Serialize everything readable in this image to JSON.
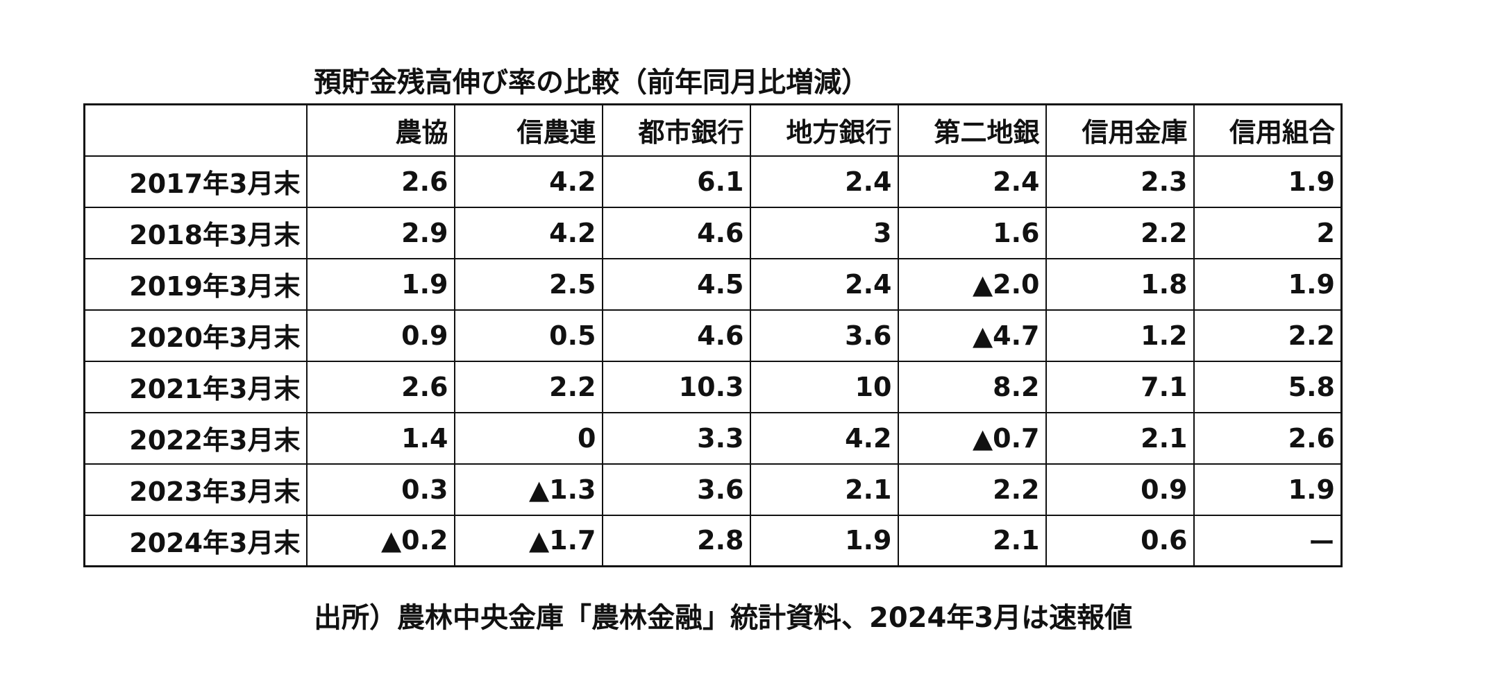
{
  "title": "預貯金残高伸び率の比較（前年同月比増減）",
  "table": {
    "columns": [
      "農協",
      "信農連",
      "都市銀行",
      "地方銀行",
      "第二地銀",
      "信用金庫",
      "信用組合"
    ],
    "rows": [
      [
        "2017年3月末",
        "2.6",
        "4.2",
        "6.1",
        "2.4",
        "2.4",
        "2.3",
        "1.9"
      ],
      [
        "2018年3月末",
        "2.9",
        "4.2",
        "4.6",
        "3",
        "1.6",
        "2.2",
        "2"
      ],
      [
        "2019年3月末",
        "1.9",
        "2.5",
        "4.5",
        "2.4",
        "▲2.0",
        "1.8",
        "1.9"
      ],
      [
        "2020年3月末",
        "0.9",
        "0.5",
        "4.6",
        "3.6",
        "▲4.7",
        "1.2",
        "2.2"
      ],
      [
        "2021年3月末",
        "2.6",
        "2.2",
        "10.3",
        "10",
        "8.2",
        "7.1",
        "5.8"
      ],
      [
        "2022年3月末",
        "1.4",
        "0",
        "3.3",
        "4.2",
        "▲0.7",
        "2.1",
        "2.6"
      ],
      [
        "2023年3月末",
        "0.3",
        "▲1.3",
        "3.6",
        "2.1",
        "2.2",
        "0.9",
        "1.9"
      ],
      [
        "2024年3月末",
        "▲0.2",
        "▲1.7",
        "2.8",
        "1.9",
        "2.1",
        "0.6",
        "ー"
      ]
    ]
  },
  "source": "出所）農林中央金庫「農林金融」統計資料、2024年3月は速報値"
}
